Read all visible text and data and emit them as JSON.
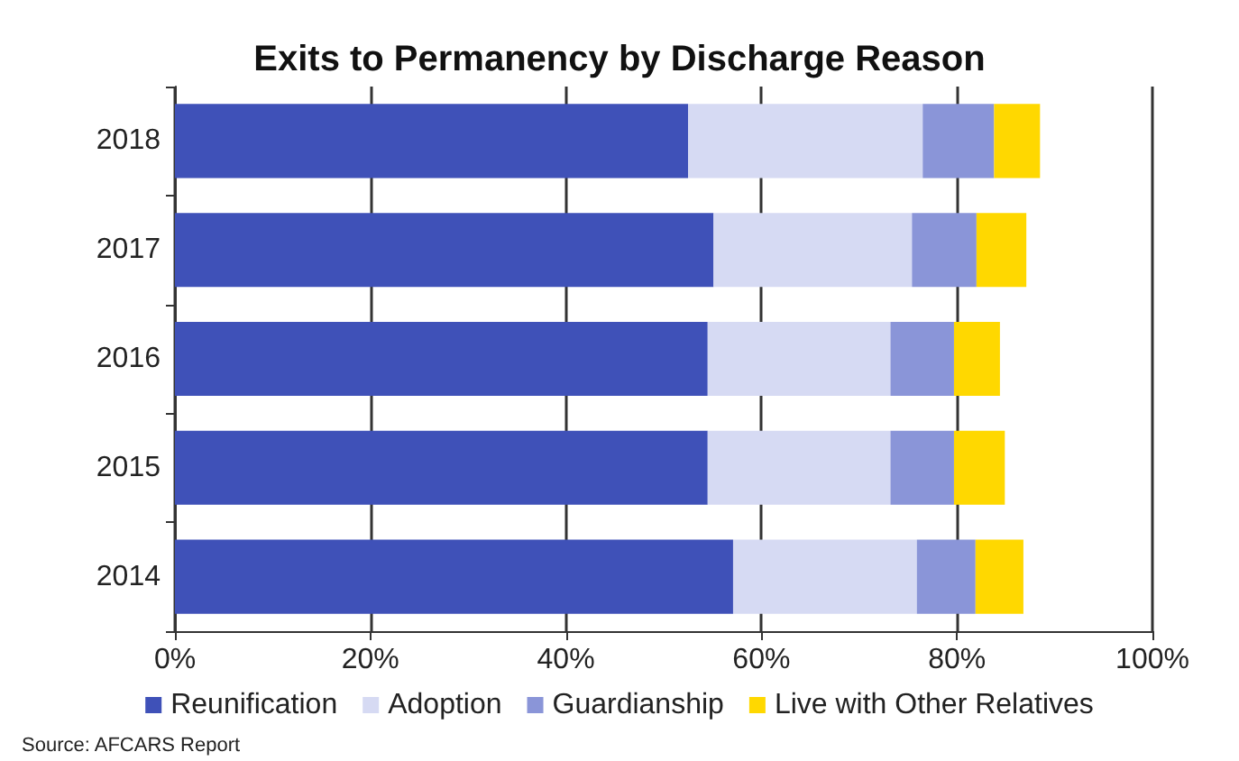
{
  "chart_data": {
    "type": "bar",
    "orientation": "horizontal",
    "stacked": true,
    "title": "Exits to Permanency by Discharge Reason",
    "categories": [
      "2018",
      "2017",
      "2016",
      "2015",
      "2014"
    ],
    "series": [
      {
        "name": "Reunification",
        "color": "#3f51b8",
        "values": [
          52.5,
          55.1,
          54.5,
          54.5,
          57.1
        ]
      },
      {
        "name": "Adoption",
        "color": "#d6daf3",
        "values": [
          24.0,
          20.3,
          18.7,
          18.7,
          18.8
        ]
      },
      {
        "name": "Guardianship",
        "color": "#8a95d8",
        "values": [
          7.3,
          6.6,
          6.5,
          6.5,
          6.0
        ]
      },
      {
        "name": "Live with Other Relatives",
        "color": "#ffd800",
        "values": [
          4.7,
          5.1,
          4.7,
          5.2,
          4.9
        ]
      }
    ],
    "xlim": [
      0,
      100
    ],
    "xticks": [
      {
        "value": 0,
        "label": "0%"
      },
      {
        "value": 20,
        "label": "20%"
      },
      {
        "value": 40,
        "label": "40%"
      },
      {
        "value": 60,
        "label": "60%"
      },
      {
        "value": 80,
        "label": "80%"
      },
      {
        "value": 100,
        "label": "100%"
      }
    ],
    "grid": "x",
    "legend": "bottom",
    "annotations": [
      "Source: AFCARS Report"
    ]
  }
}
